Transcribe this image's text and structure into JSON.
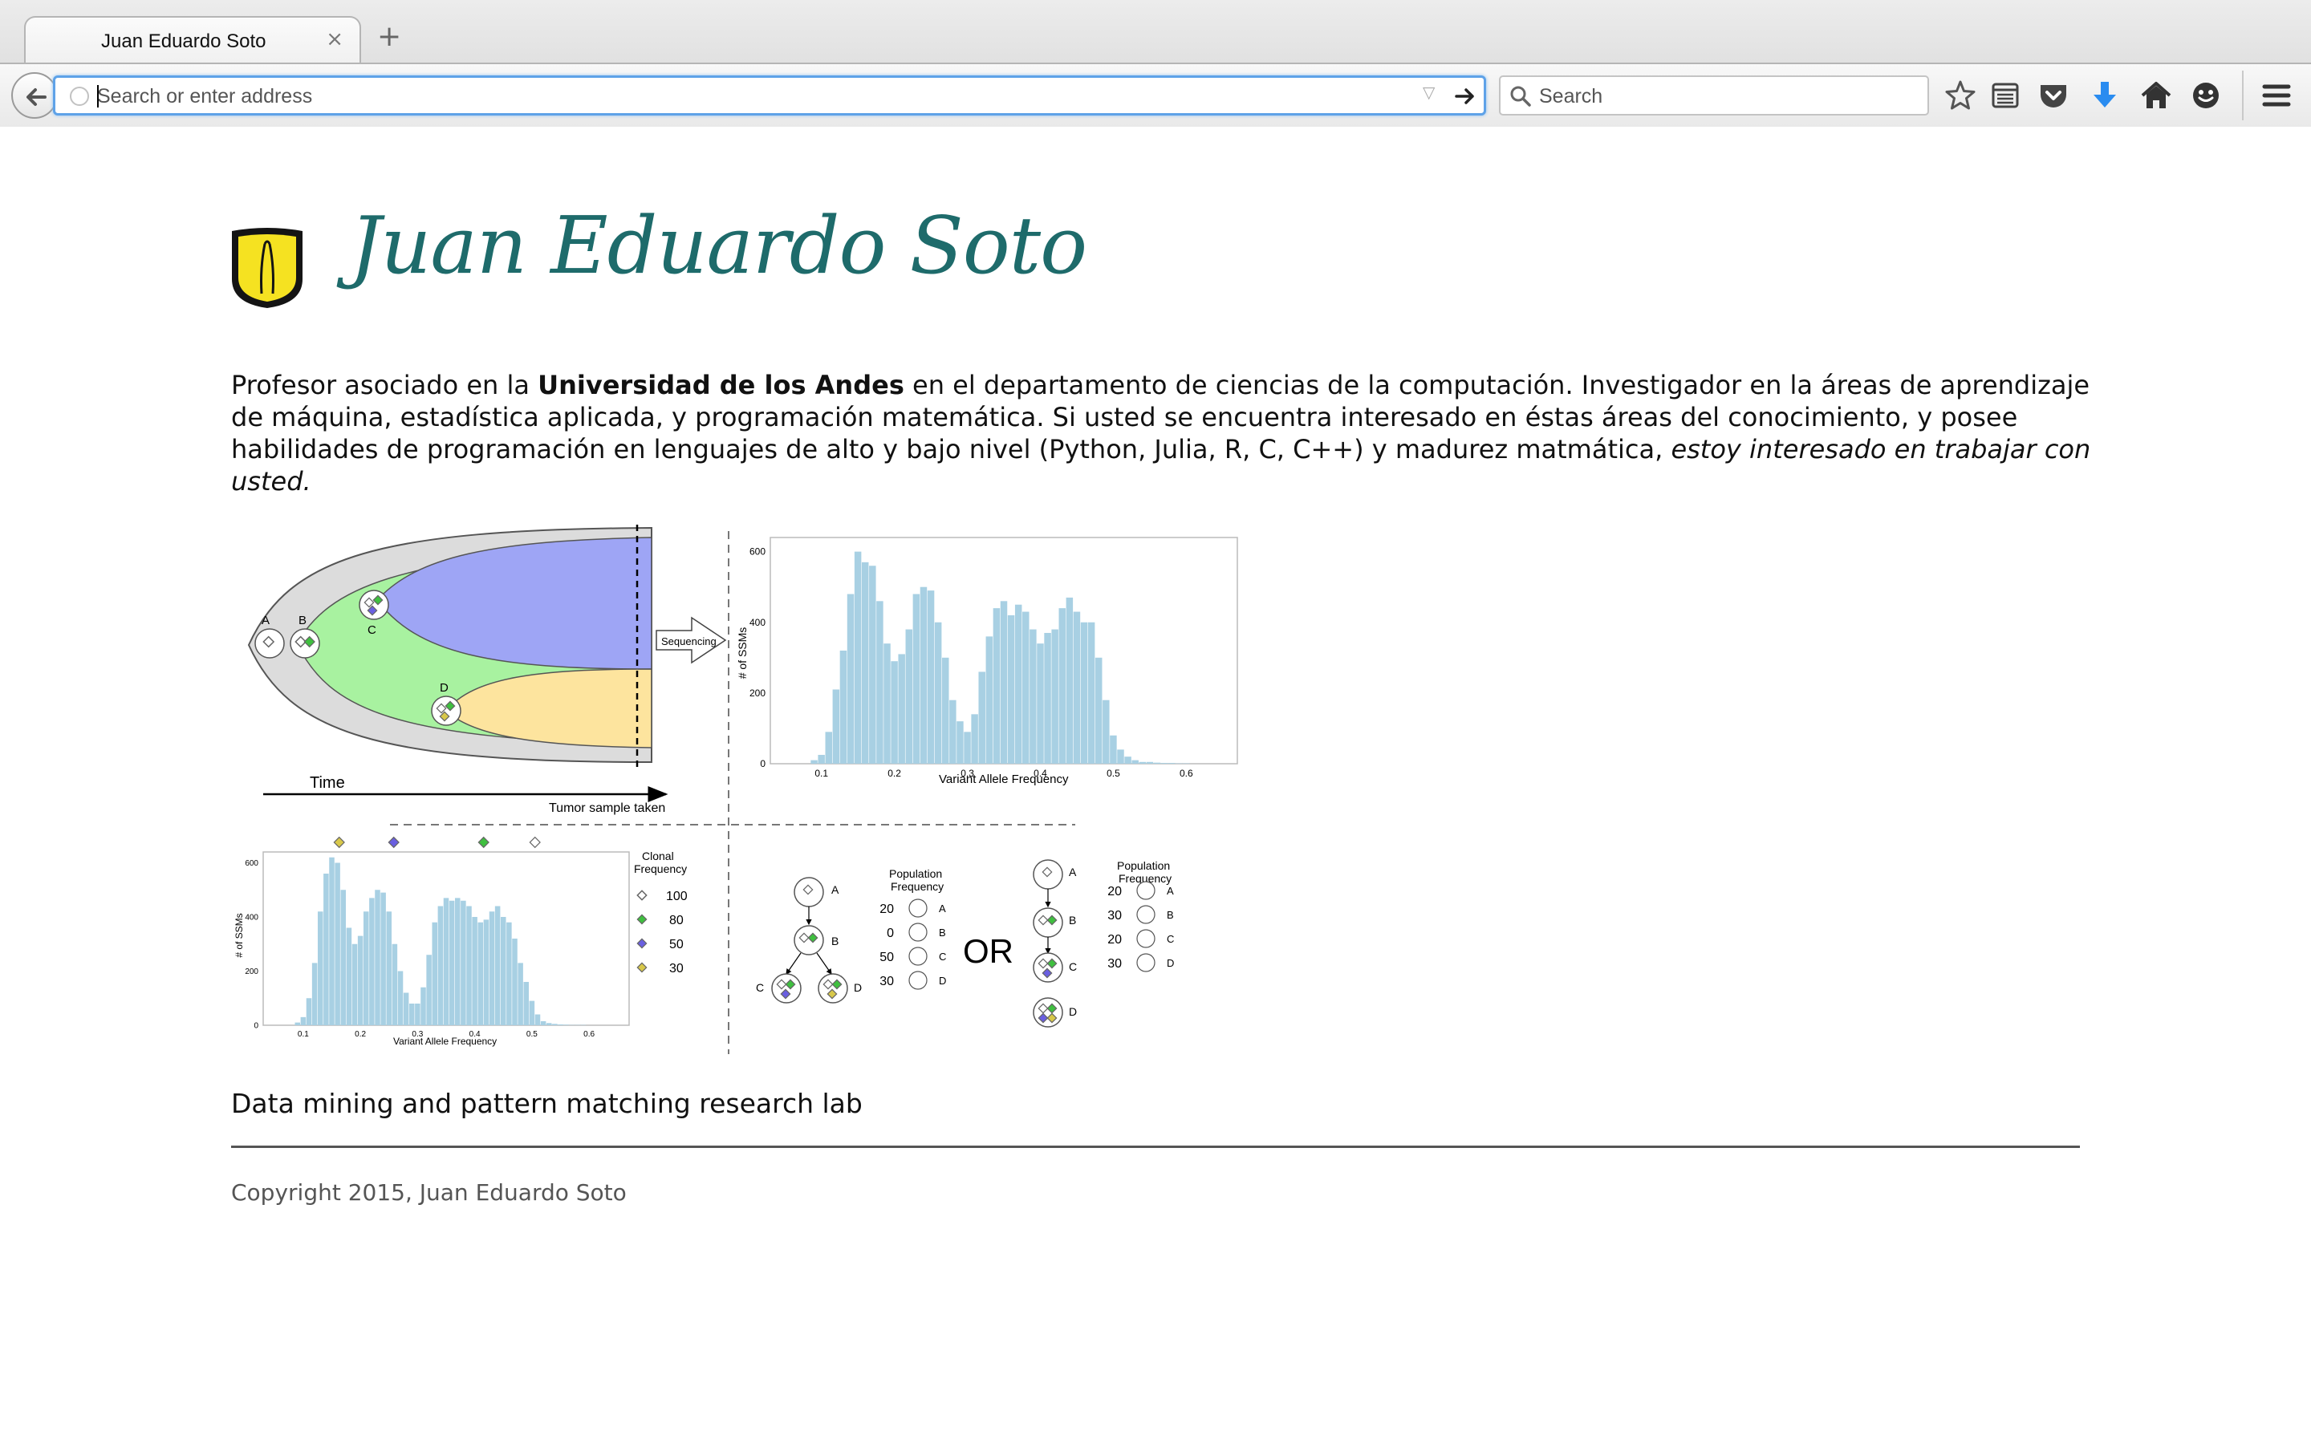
{
  "browser": {
    "tab_title": "Juan Eduardo Soto",
    "tab_close_glyph": "×",
    "new_tab_glyph": "+",
    "url_placeholder": "Search or enter address",
    "search_placeholder": "Search",
    "accent_color": "#5ea2e8",
    "download_icon_color": "#2a8cf0",
    "toolbar_icons": [
      "bookmark-star-icon",
      "reading-list-icon",
      "pocket-icon",
      "downloads-icon",
      "home-icon",
      "chat-icon",
      "menu-icon"
    ]
  },
  "header": {
    "title": "Juan Eduardo Soto",
    "title_color": "#1e6b6b",
    "logo": "university-shield-logo"
  },
  "intro": {
    "p1": "Profesor asociado en la ",
    "p2_bold": "Universidad de los Andes",
    "p3": " en el departamento de ciencias de la computación. Investigador en la áreas de aprendizaje de máquina, estadística aplicada, y programación matemática. Si usted se encuentra interesado en éstas áreas del conocimiento, y posee habilidades de programación en lenguajes de alto y bajo nivel (Python, Julia, R, C, C++) y madurez matmática, ",
    "p4_italic": "estoy interesado en trabajar con usted."
  },
  "figure": {
    "clone_labels": [
      "A",
      "B",
      "C",
      "D"
    ],
    "time_label": "Time",
    "sample_label": "Tumor sample taken",
    "sequencing_label": "Sequencing",
    "colors": {
      "purple": "#9ea5f5",
      "green": "#a8f2a0",
      "yellow": "#fde49e",
      "grey": "#dcdcdc",
      "bars": "#a8d0e3"
    },
    "legend": {
      "title_line1": "Clonal",
      "title_line2": "Frequency",
      "items": [
        {
          "value": "100",
          "color": "#999999"
        },
        {
          "value": "80",
          "color": "#3fbf3f"
        },
        {
          "value": "50",
          "color": "#6a5fe0"
        },
        {
          "value": "30",
          "color": "#d8c84a"
        }
      ]
    },
    "population_title_line1": "Population",
    "population_title_line2": "Frequency",
    "tree1_rows": [
      {
        "freq": "20",
        "clone": "A"
      },
      {
        "freq": "0",
        "clone": "B"
      },
      {
        "freq": "50",
        "clone": "C"
      },
      {
        "freq": "30",
        "clone": "D"
      }
    ],
    "tree2_rows": [
      {
        "freq": "20",
        "clone": "A"
      },
      {
        "freq": "30",
        "clone": "B"
      },
      {
        "freq": "20",
        "clone": "C"
      },
      {
        "freq": "30",
        "clone": "D"
      }
    ],
    "or_label": "OR"
  },
  "chart_data": [
    {
      "type": "bar",
      "title": "",
      "xlabel": "Variant Allele Frequency",
      "ylabel": "# of SSMs",
      "xticks": [
        "0.1",
        "0.2",
        "0.3",
        "0.4",
        "0.5",
        "0.6"
      ],
      "yticks": [
        "0",
        "200",
        "400",
        "600"
      ],
      "xlim": [
        0.03,
        0.67
      ],
      "ylim": [
        0,
        640
      ],
      "bin_width": 0.01,
      "x": [
        0.09,
        0.1,
        0.11,
        0.12,
        0.13,
        0.14,
        0.15,
        0.16,
        0.17,
        0.18,
        0.19,
        0.2,
        0.21,
        0.22,
        0.23,
        0.24,
        0.25,
        0.26,
        0.27,
        0.28,
        0.29,
        0.3,
        0.31,
        0.32,
        0.33,
        0.34,
        0.35,
        0.36,
        0.37,
        0.38,
        0.39,
        0.4,
        0.41,
        0.42,
        0.43,
        0.44,
        0.45,
        0.46,
        0.47,
        0.48,
        0.49,
        0.5,
        0.51,
        0.52,
        0.53,
        0.54,
        0.55,
        0.56,
        0.57,
        0.58,
        0.59,
        0.6,
        0.61
      ],
      "values": [
        10,
        25,
        90,
        210,
        320,
        480,
        600,
        570,
        560,
        460,
        340,
        290,
        310,
        380,
        480,
        500,
        490,
        400,
        300,
        180,
        120,
        90,
        140,
        260,
        360,
        440,
        460,
        420,
        450,
        430,
        380,
        340,
        370,
        380,
        440,
        470,
        430,
        400,
        400,
        300,
        180,
        80,
        40,
        20,
        10,
        5,
        5,
        3,
        2,
        2,
        1,
        1,
        0
      ]
    },
    {
      "type": "bar",
      "title": "",
      "xlabel": "Variant Allele Frequency",
      "ylabel": "# of SSMs",
      "xticks": [
        "0.1",
        "0.2",
        "0.3",
        "0.4",
        "0.5",
        "0.6"
      ],
      "yticks": [
        "0",
        "200",
        "400",
        "600"
      ],
      "xlim": [
        0.03,
        0.67
      ],
      "ylim": [
        0,
        640
      ],
      "bin_width": 0.01,
      "x": [
        0.09,
        0.1,
        0.11,
        0.12,
        0.13,
        0.14,
        0.15,
        0.16,
        0.17,
        0.18,
        0.19,
        0.2,
        0.21,
        0.22,
        0.23,
        0.24,
        0.25,
        0.26,
        0.27,
        0.28,
        0.29,
        0.3,
        0.31,
        0.32,
        0.33,
        0.34,
        0.35,
        0.36,
        0.37,
        0.38,
        0.39,
        0.4,
        0.41,
        0.42,
        0.43,
        0.44,
        0.45,
        0.46,
        0.47,
        0.48,
        0.49,
        0.5,
        0.51,
        0.52,
        0.53,
        0.54,
        0.55,
        0.56,
        0.57,
        0.58,
        0.59,
        0.6,
        0.61
      ],
      "values": [
        10,
        30,
        100,
        230,
        420,
        560,
        620,
        600,
        500,
        360,
        300,
        330,
        420,
        470,
        500,
        490,
        420,
        300,
        200,
        120,
        80,
        80,
        140,
        260,
        380,
        440,
        470,
        460,
        470,
        460,
        440,
        400,
        380,
        390,
        420,
        440,
        400,
        380,
        320,
        230,
        160,
        90,
        40,
        15,
        8,
        5,
        3,
        2,
        1,
        1,
        1,
        0,
        0
      ]
    }
  ],
  "lab": {
    "name": "Data mining and pattern matching research lab"
  },
  "footer": {
    "copyright": "Copyright 2015, Juan Eduardo Soto"
  }
}
